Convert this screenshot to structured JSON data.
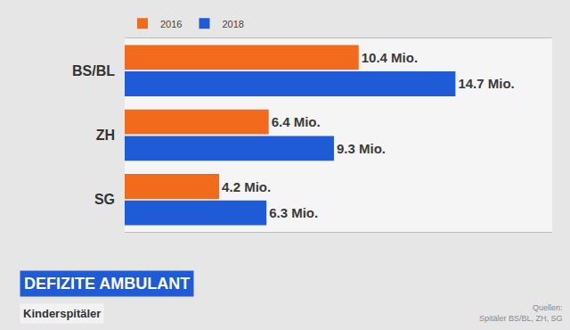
{
  "chart_data": {
    "type": "bar",
    "orientation": "horizontal",
    "title": "DEFIZITE AMBULANT",
    "subtitle": "Kinderspitäler",
    "source": [
      "Quellen:",
      "Spitäler BS/BL, ZH, SG"
    ],
    "categories": [
      "BS/BL",
      "ZH",
      "SG"
    ],
    "series": [
      {
        "name": "2016",
        "color": "#f26a1b",
        "values": [
          10.4,
          6.4,
          4.2
        ],
        "value_labels": [
          "10.4 Mio.",
          "6.4 Mio.",
          "4.2 Mio."
        ]
      },
      {
        "name": "2018",
        "color": "#1f5bd6",
        "values": [
          14.7,
          9.3,
          6.3
        ],
        "value_labels": [
          "14.7 Mio.",
          "9.3 Mio.",
          "6.3 Mio."
        ]
      }
    ],
    "xlim": [
      0,
      19
    ],
    "xticks": [],
    "grid": false,
    "legend": "top left",
    "data_labels": true,
    "tick_labels": "y"
  }
}
